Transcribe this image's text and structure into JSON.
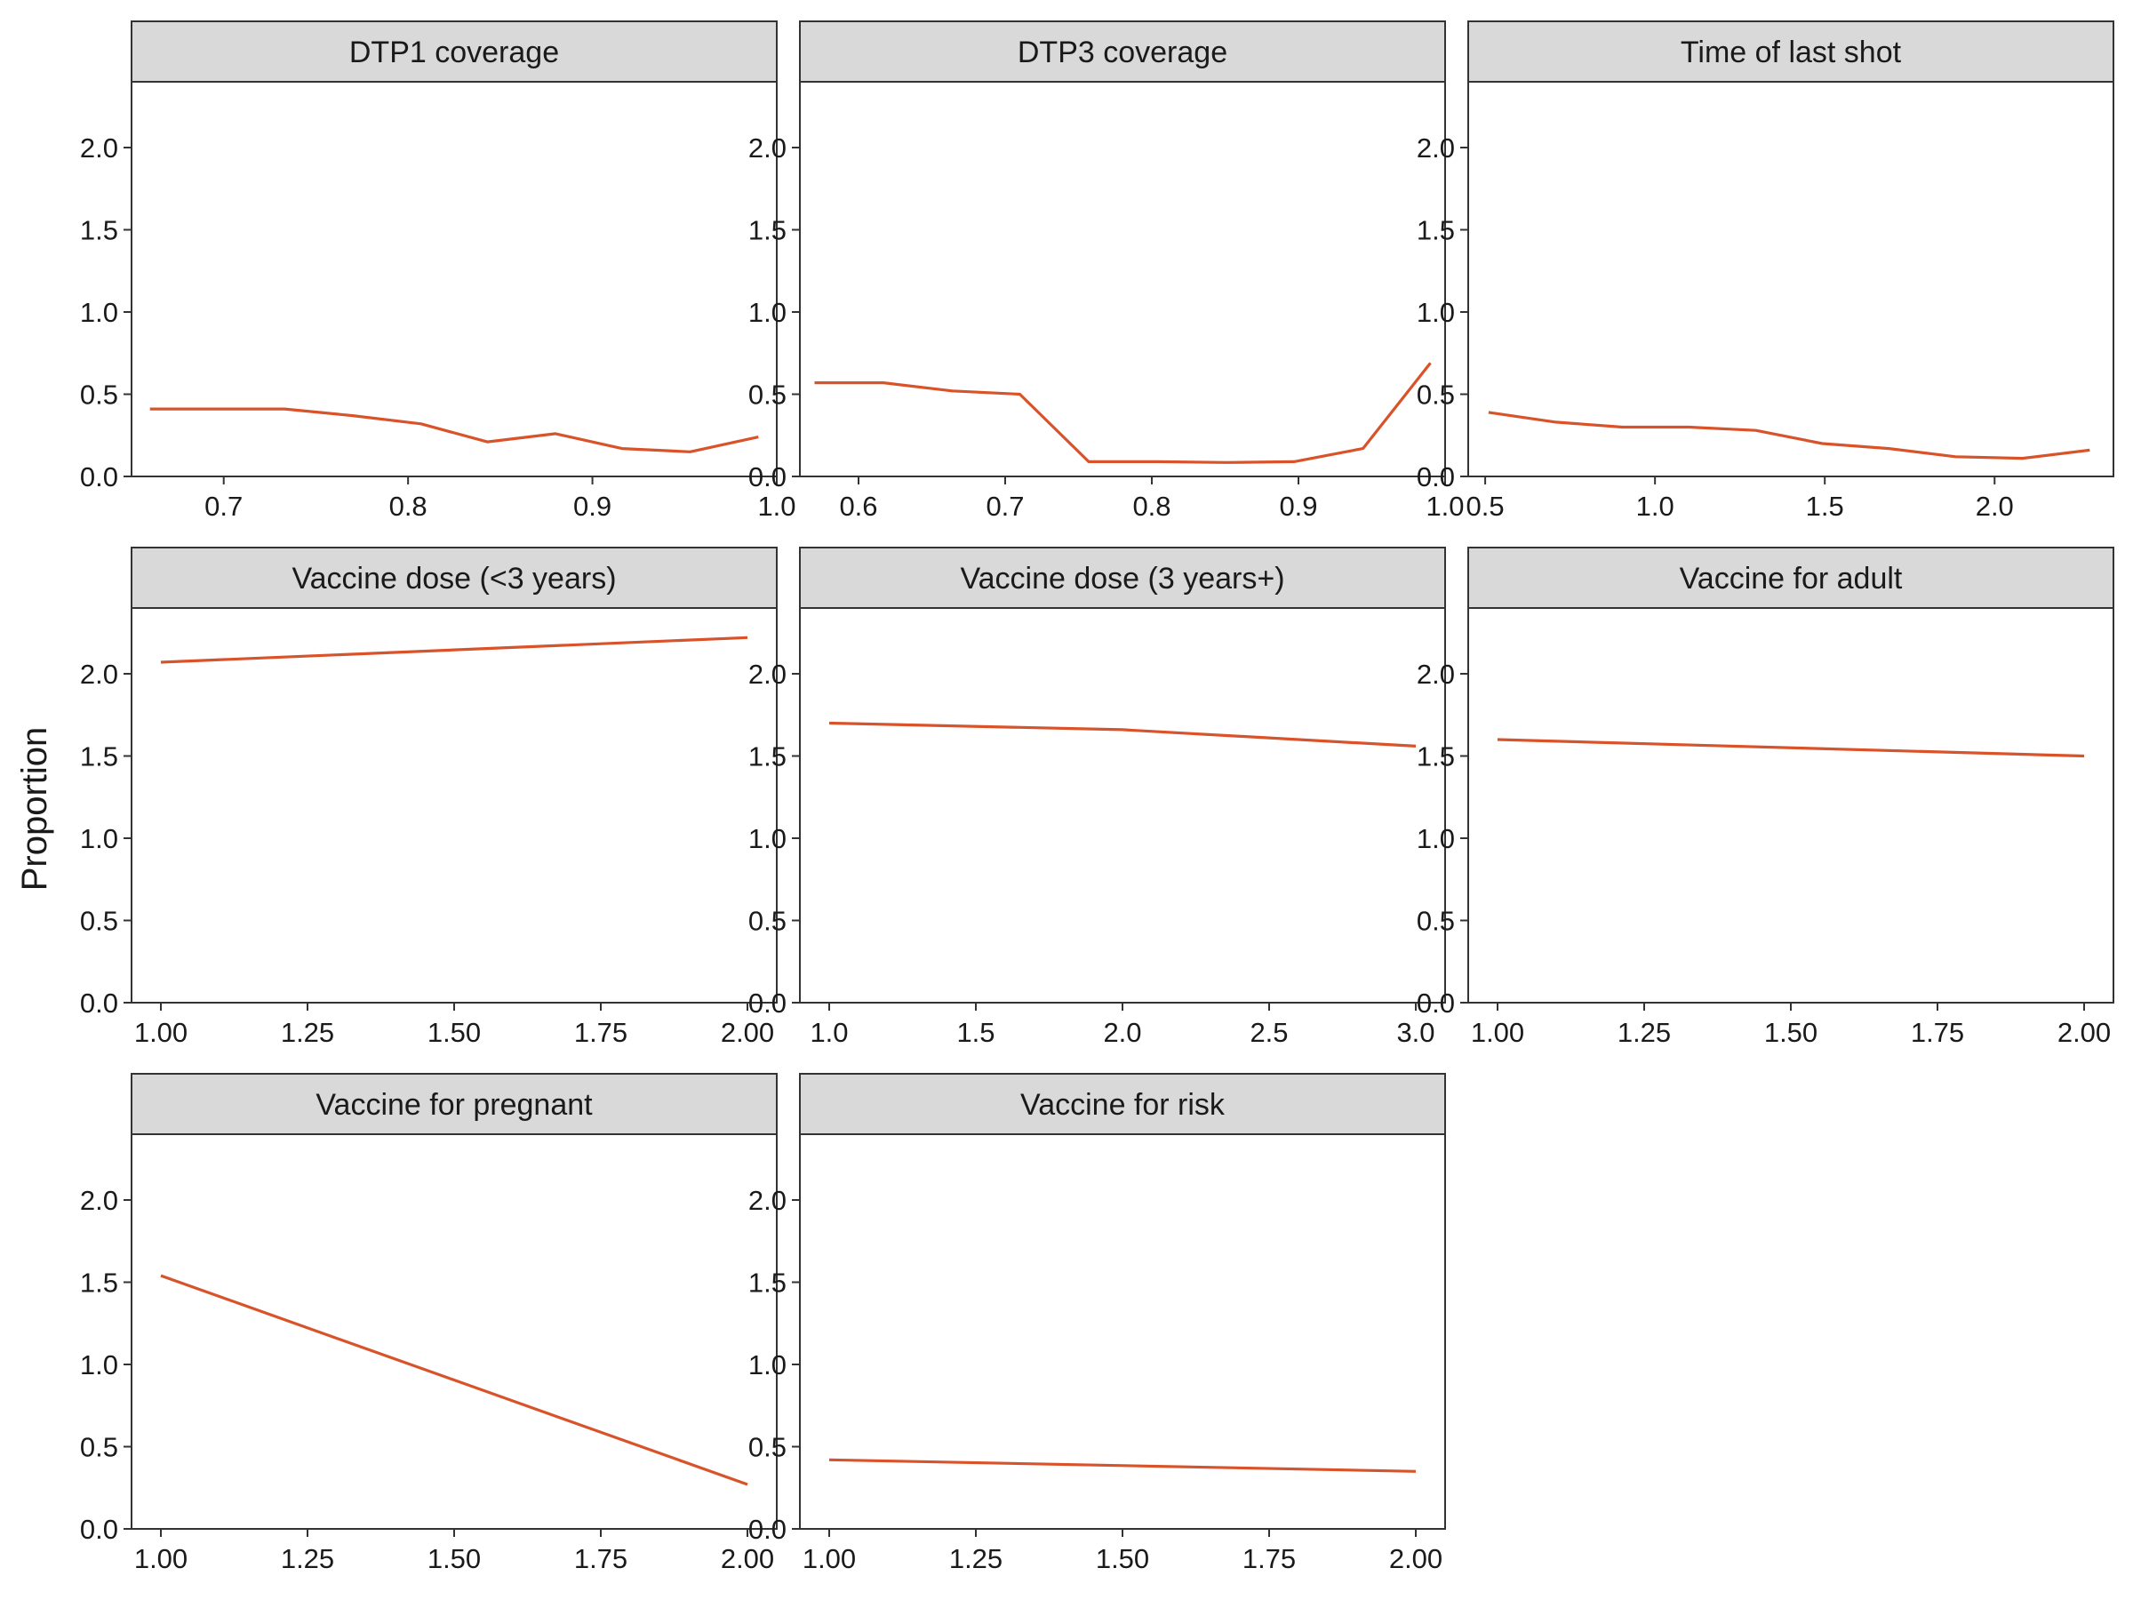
{
  "chart_data": {
    "type": "line",
    "ylabel": "Proportion",
    "ylim": [
      0,
      2.4
    ],
    "y_ticks": [
      "0.0",
      "0.5",
      "1.0",
      "1.5",
      "2.0"
    ],
    "y_tick_values": [
      0,
      0.5,
      1.0,
      1.5,
      2.0
    ],
    "line_color": "#d9532a",
    "strip_color": "#d9d9d9",
    "grid": false,
    "panels": [
      {
        "title": "DTP1 coverage",
        "xlim": [
          0.65,
          1.0
        ],
        "x_ticks": [
          "0.7",
          "0.8",
          "0.9",
          "1.0"
        ],
        "x_tick_values": [
          0.7,
          0.8,
          0.9,
          1.0
        ],
        "x": [
          0.66,
          0.697,
          0.733,
          0.77,
          0.807,
          0.843,
          0.88,
          0.916,
          0.953,
          0.99
        ],
        "y": [
          0.41,
          0.41,
          0.41,
          0.37,
          0.32,
          0.21,
          0.26,
          0.17,
          0.15,
          0.24
        ]
      },
      {
        "title": "DTP3 coverage",
        "xlim": [
          0.56,
          1.0
        ],
        "x_ticks": [
          "0.6",
          "0.7",
          "0.8",
          "0.9",
          "1.0"
        ],
        "x_tick_values": [
          0.6,
          0.7,
          0.8,
          0.9,
          1.0
        ],
        "x": [
          0.57,
          0.617,
          0.664,
          0.71,
          0.757,
          0.804,
          0.851,
          0.897,
          0.944,
          0.99
        ],
        "y": [
          0.57,
          0.57,
          0.52,
          0.5,
          0.09,
          0.09,
          0.085,
          0.09,
          0.17,
          0.69
        ]
      },
      {
        "title": "Time of last shot",
        "xlim": [
          0.45,
          2.35
        ],
        "x_ticks": [
          "0.5",
          "1.0",
          "1.5",
          "2.0"
        ],
        "x_tick_values": [
          0.5,
          1.0,
          1.5,
          2.0
        ],
        "x": [
          0.51,
          0.708,
          0.904,
          1.1,
          1.297,
          1.493,
          1.689,
          1.885,
          2.082,
          2.28
        ],
        "y": [
          0.39,
          0.33,
          0.3,
          0.3,
          0.28,
          0.2,
          0.17,
          0.12,
          0.11,
          0.16
        ]
      },
      {
        "title": "Vaccine dose (<3 years)",
        "xlim": [
          0.95,
          2.05
        ],
        "x_ticks": [
          "1.00",
          "1.25",
          "1.50",
          "1.75",
          "2.00"
        ],
        "x_tick_values": [
          1.0,
          1.25,
          1.5,
          1.75,
          2.0
        ],
        "x": [
          1.0,
          2.0
        ],
        "y": [
          2.07,
          2.22
        ]
      },
      {
        "title": "Vaccine dose (3 years+)",
        "xlim": [
          0.9,
          3.1
        ],
        "x_ticks": [
          "1.0",
          "1.5",
          "2.0",
          "2.5",
          "3.0"
        ],
        "x_tick_values": [
          1.0,
          1.5,
          2.0,
          2.5,
          3.0
        ],
        "x": [
          1.0,
          2.0,
          3.0
        ],
        "y": [
          1.7,
          1.66,
          1.56
        ]
      },
      {
        "title": "Vaccine for adult",
        "xlim": [
          0.95,
          2.05
        ],
        "x_ticks": [
          "1.00",
          "1.25",
          "1.50",
          "1.75",
          "2.00"
        ],
        "x_tick_values": [
          1.0,
          1.25,
          1.5,
          1.75,
          2.0
        ],
        "x": [
          1.0,
          2.0
        ],
        "y": [
          1.6,
          1.5
        ]
      },
      {
        "title": "Vaccine for pregnant",
        "xlim": [
          0.95,
          2.05
        ],
        "x_ticks": [
          "1.00",
          "1.25",
          "1.50",
          "1.75",
          "2.00"
        ],
        "x_tick_values": [
          1.0,
          1.25,
          1.5,
          1.75,
          2.0
        ],
        "x": [
          1.0,
          2.0
        ],
        "y": [
          1.54,
          0.27
        ]
      },
      {
        "title": "Vaccine for risk",
        "xlim": [
          0.95,
          2.05
        ],
        "x_ticks": [
          "1.00",
          "1.25",
          "1.50",
          "1.75",
          "2.00"
        ],
        "x_tick_values": [
          1.0,
          1.25,
          1.5,
          1.75,
          2.0
        ],
        "x": [
          1.0,
          2.0
        ],
        "y": [
          0.42,
          0.35
        ]
      }
    ]
  }
}
